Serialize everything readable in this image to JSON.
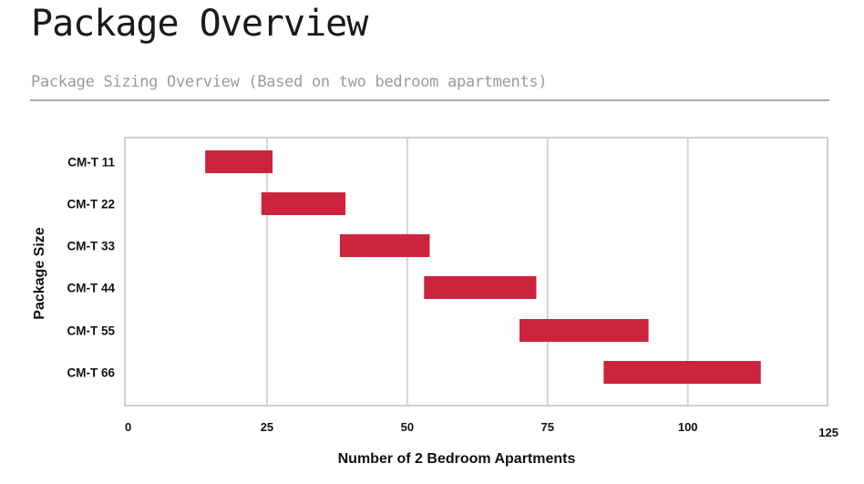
{
  "header": {
    "title": "Package Overview",
    "subtitle": "Package Sizing Overview (Based on two bedroom apartments)"
  },
  "chart_data": {
    "type": "bar",
    "orientation": "horizontal-range",
    "title": "",
    "xlabel": "Number of 2 Bedroom Apartments",
    "ylabel": "Package Size",
    "xlim": [
      0,
      125
    ],
    "xticks": [
      "0",
      "25",
      "50",
      "75",
      "100",
      "125"
    ],
    "categories": [
      "CM-T 11",
      "CM-T 22",
      "CM-T 33",
      "CM-T 44",
      "CM-T 55",
      "CM-T 66"
    ],
    "ranges": [
      [
        14,
        26
      ],
      [
        24,
        39
      ],
      [
        38,
        54
      ],
      [
        53,
        73
      ],
      [
        70,
        93
      ],
      [
        85,
        113
      ]
    ],
    "grid": true,
    "bar_color": "#cc243c",
    "grid_color": "#d4d4d4"
  }
}
